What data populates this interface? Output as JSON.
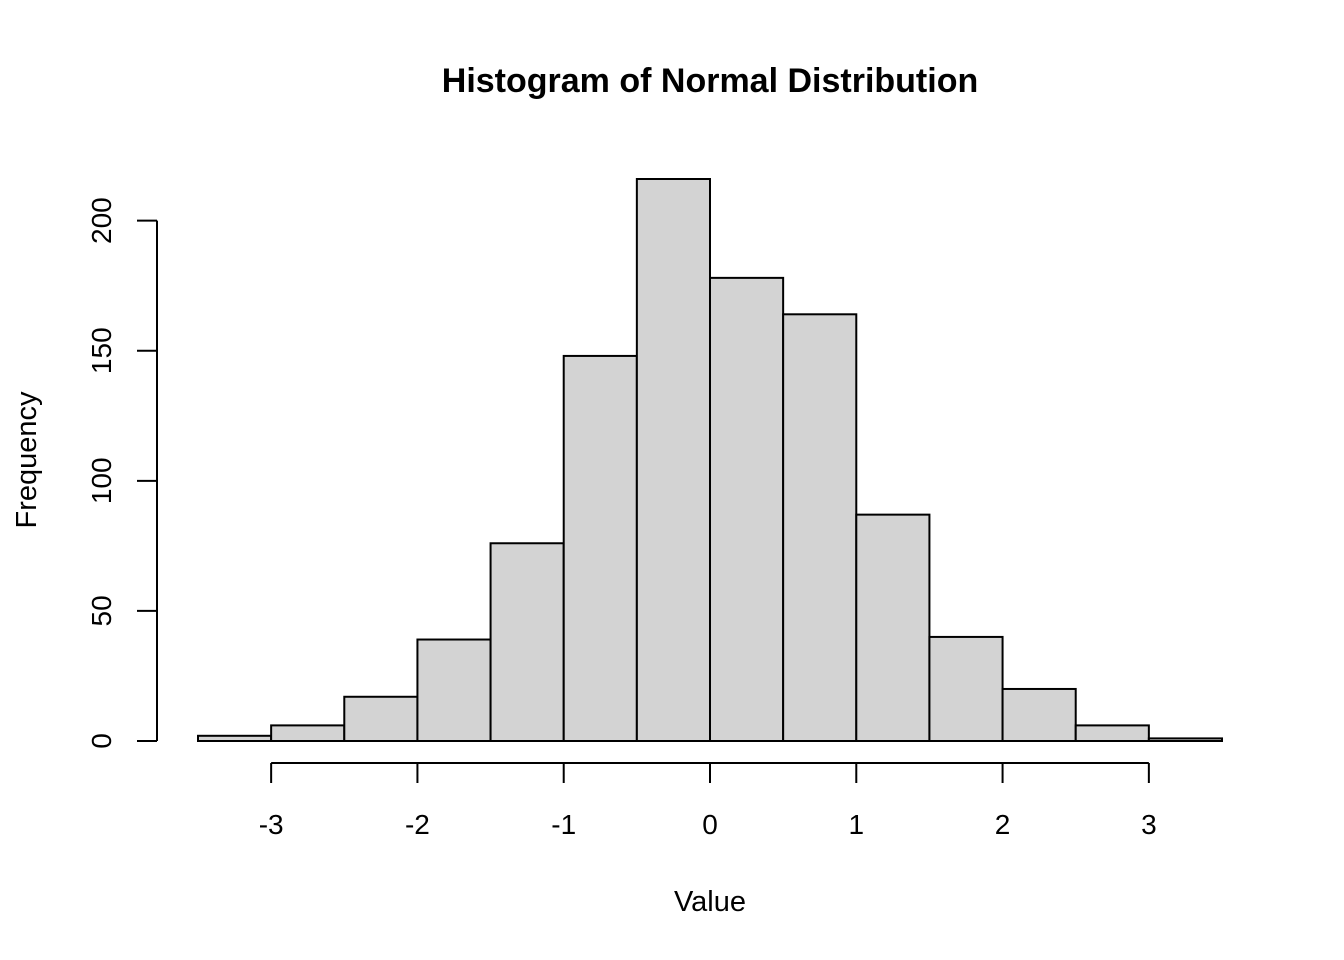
{
  "chart_data": {
    "type": "bar",
    "title": "Histogram of Normal Distribution",
    "xlabel": "Value",
    "ylabel": "Frequency",
    "bin_edges": [
      -3.5,
      -3,
      -2.5,
      -2,
      -1.5,
      -1,
      -0.5,
      0,
      0.5,
      1,
      1.5,
      2,
      2.5,
      3,
      3.5
    ],
    "values": [
      2,
      6,
      17,
      39,
      76,
      148,
      216,
      178,
      164,
      87,
      40,
      20,
      6,
      1
    ],
    "xlim": [
      -3.5,
      3.5
    ],
    "ylim": [
      0,
      216
    ],
    "x_ticks": [
      -3,
      -2,
      -1,
      0,
      1,
      2,
      3
    ],
    "x_tick_labels": [
      "-3",
      "-2",
      "-1",
      "0",
      "1",
      "2",
      "3"
    ],
    "y_ticks": [
      0,
      50,
      100,
      150,
      200
    ],
    "y_tick_labels": [
      "0",
      "50",
      "100",
      "150",
      "200"
    ],
    "bar_color": "#d3d3d3",
    "grid": false,
    "legend": "none"
  }
}
